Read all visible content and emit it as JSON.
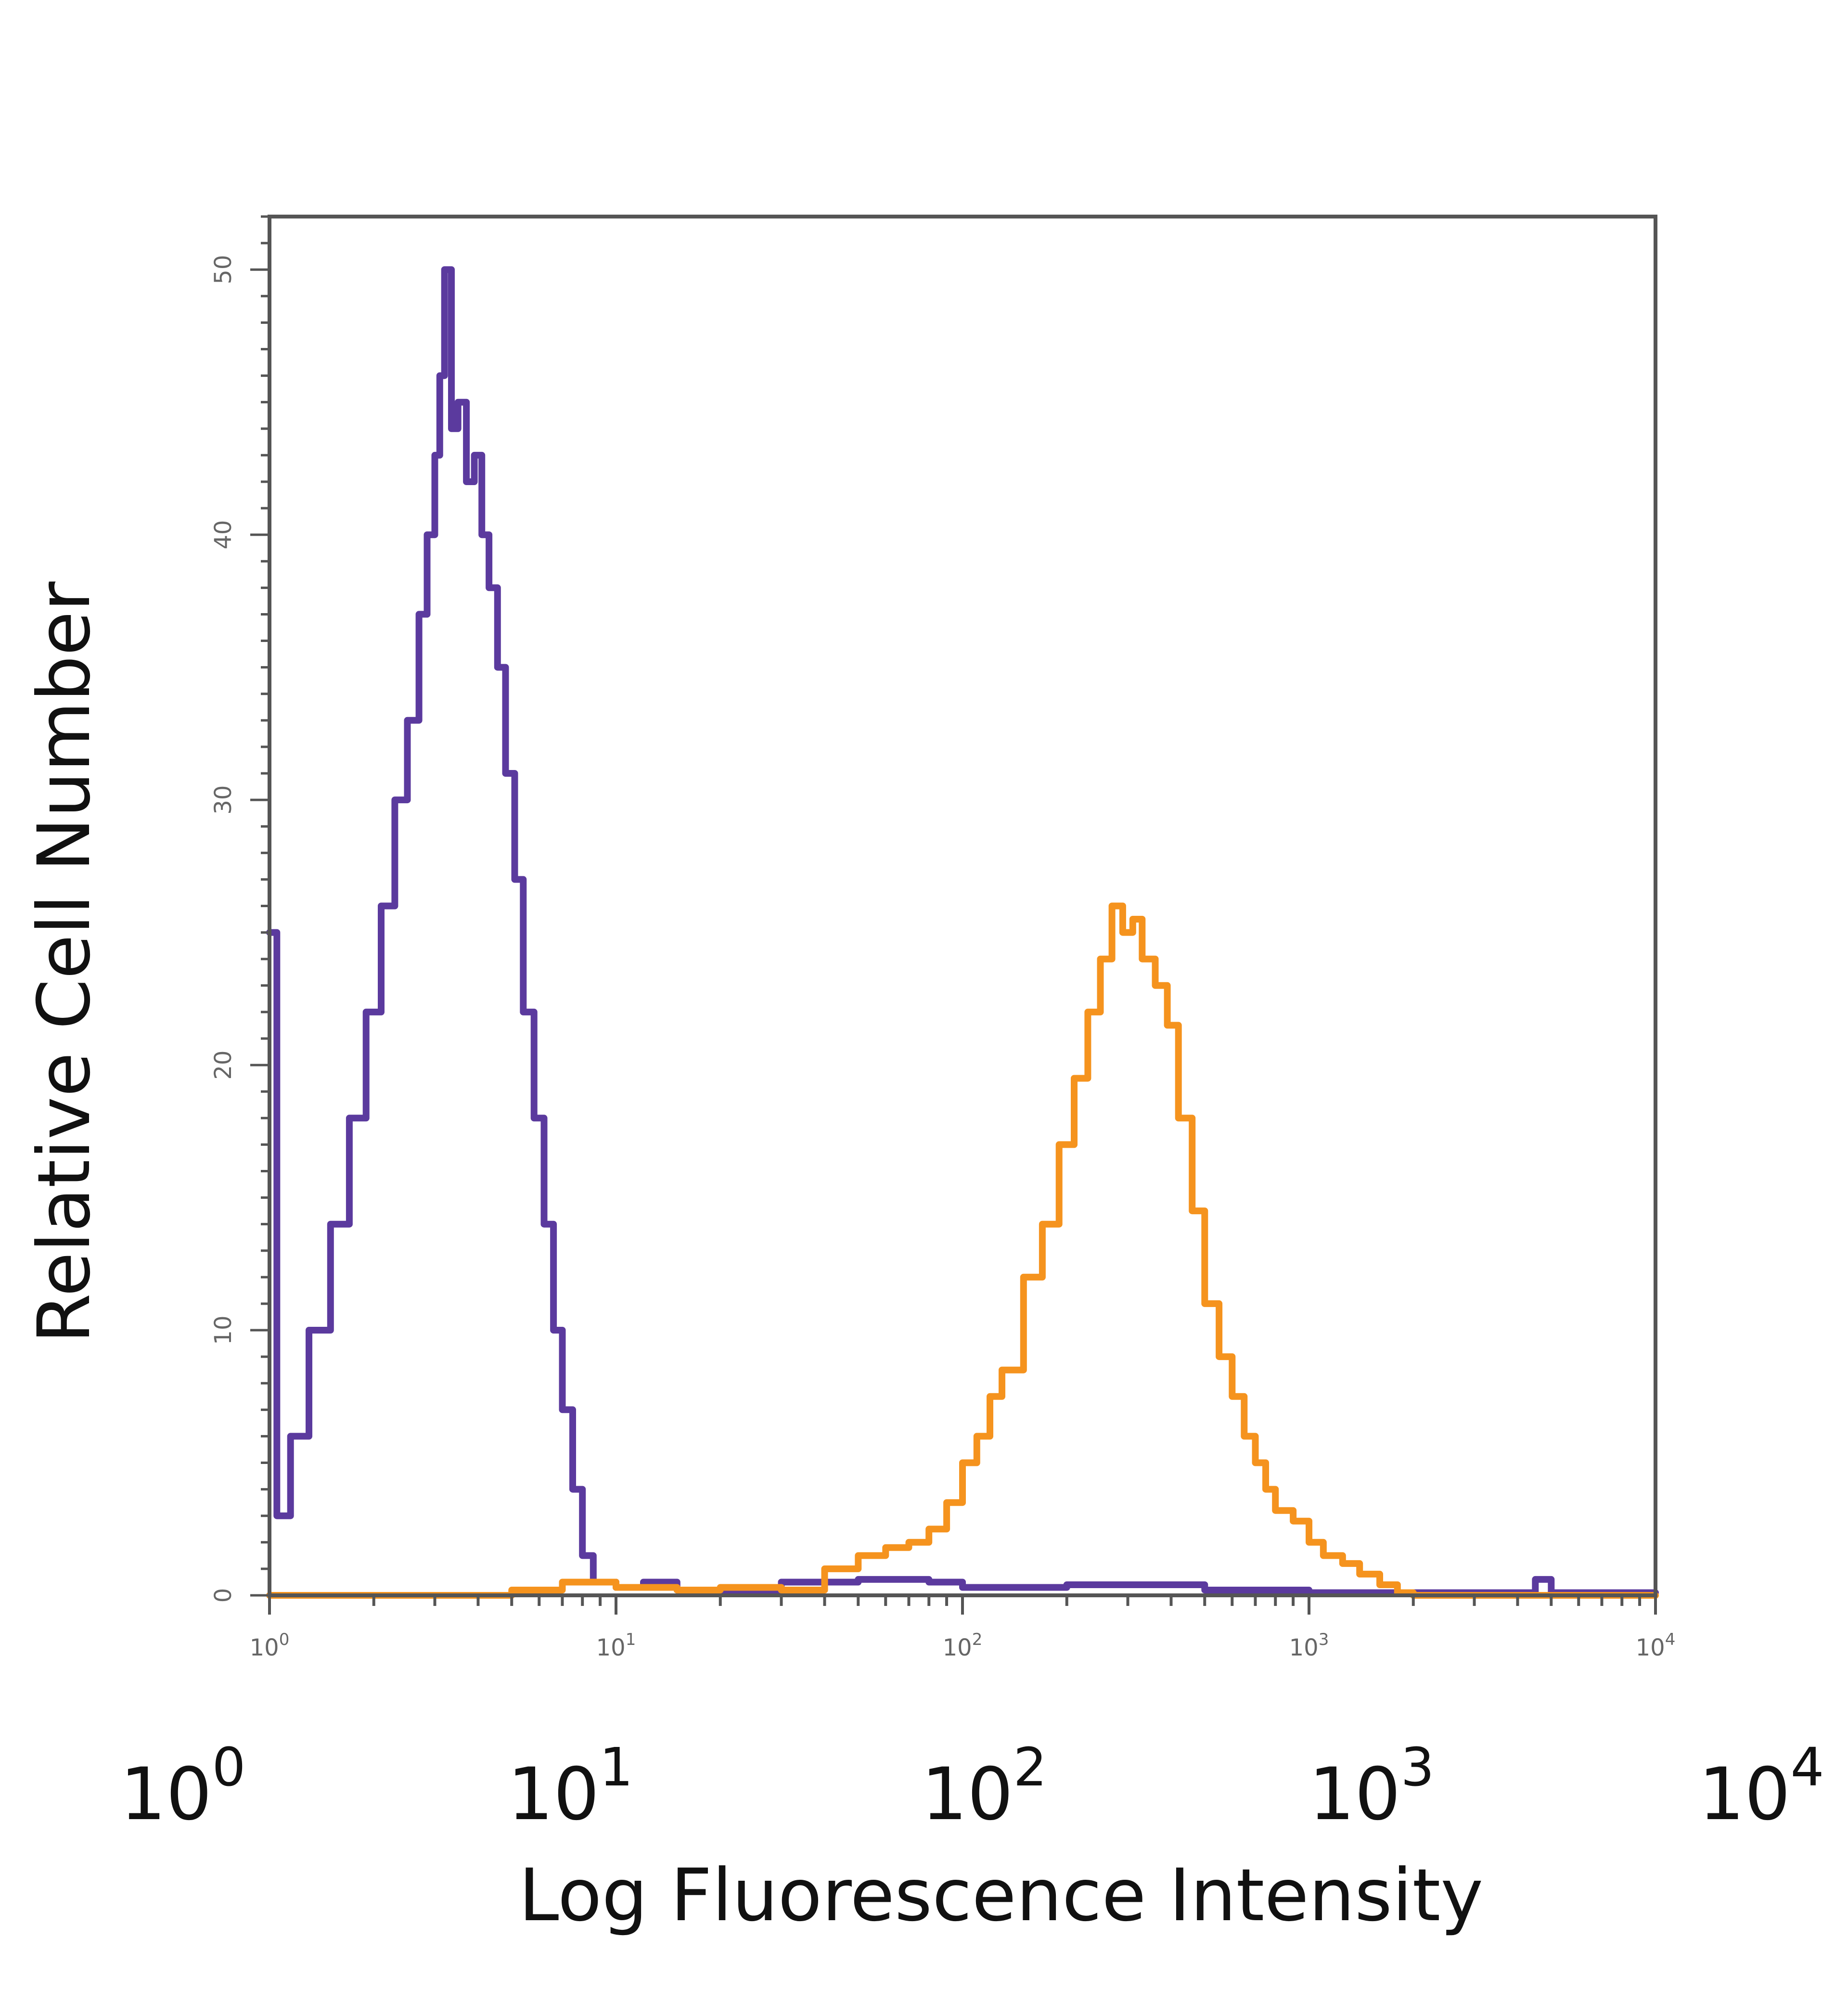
{
  "chart_data": {
    "type": "line",
    "title": "",
    "xlabel": "Log Fluorescence Intensity",
    "ylabel": "Relative Cell Number",
    "x_scale": "log",
    "xlim": [
      1,
      10000
    ],
    "ylim": [
      0,
      52
    ],
    "grid": false,
    "legend": "none",
    "x_tick_labels": [
      {
        "value": 1,
        "base": "10",
        "exp": "0"
      },
      {
        "value": 10,
        "base": "10",
        "exp": "1"
      },
      {
        "value": 100,
        "base": "10",
        "exp": "2"
      },
      {
        "value": 1000,
        "base": "10",
        "exp": "3"
      },
      {
        "value": 10000,
        "base": "10",
        "exp": "4"
      }
    ],
    "y_ticks": [
      0,
      10,
      20,
      30,
      40,
      50
    ],
    "y_tick_labels": [
      "0",
      "10",
      "20",
      "30",
      "40",
      "50"
    ],
    "colors": {
      "series_1": "#5b3a9e",
      "series_2": "#f5931e",
      "frame": "#555555",
      "text": "#111111"
    },
    "series": [
      {
        "color": "#5b3a9e",
        "x": [
          1.0,
          1.05,
          1.15,
          1.3,
          1.5,
          1.7,
          1.9,
          2.1,
          2.3,
          2.5,
          2.7,
          2.85,
          3.0,
          3.1,
          3.2,
          3.35,
          3.5,
          3.7,
          3.9,
          4.1,
          4.3,
          4.55,
          4.8,
          5.1,
          5.4,
          5.8,
          6.2,
          6.6,
          7.0,
          7.5,
          8.0,
          8.6,
          9.2,
          10,
          12,
          15,
          20,
          30,
          50,
          80,
          100,
          200,
          500,
          1000,
          2000,
          4500,
          5000,
          10000
        ],
        "y": [
          25,
          3,
          6,
          10,
          14,
          18,
          22,
          26,
          30,
          33,
          37,
          40,
          43,
          46,
          50,
          44,
          45,
          42,
          43,
          40,
          38,
          35,
          31,
          27,
          22,
          18,
          14,
          10,
          7,
          4,
          1.5,
          0.5,
          0.5,
          0.3,
          0.5,
          0.2,
          0.2,
          0.5,
          0.6,
          0.5,
          0.3,
          0.4,
          0.2,
          0.1,
          0.1,
          0.6,
          0.1,
          0.1
        ]
      },
      {
        "color": "#f5931e",
        "x": [
          1.0,
          2.0,
          3.0,
          5.0,
          7.0,
          10,
          15,
          20,
          30,
          40,
          50,
          60,
          70,
          80,
          90,
          100,
          110,
          120,
          130,
          150,
          170,
          190,
          210,
          230,
          250,
          270,
          290,
          310,
          330,
          360,
          390,
          420,
          460,
          500,
          550,
          600,
          650,
          700,
          750,
          800,
          900,
          1000,
          1100,
          1250,
          1400,
          1600,
          1800,
          2000,
          2500,
          5000,
          10000
        ],
        "y": [
          0,
          0,
          0,
          0.2,
          0.5,
          0.3,
          0.2,
          0.3,
          0.2,
          1.0,
          1.5,
          1.8,
          2.0,
          2.5,
          3.5,
          5.0,
          6.0,
          7.5,
          8.5,
          12.0,
          14.0,
          17.0,
          19.5,
          22.0,
          24.0,
          26.0,
          25.0,
          25.5,
          24.0,
          23.0,
          21.5,
          18.0,
          14.5,
          11.0,
          9.0,
          7.5,
          6.0,
          5.0,
          4.0,
          3.2,
          2.8,
          2.0,
          1.5,
          1.2,
          0.8,
          0.4,
          0.1,
          0,
          0,
          0,
          0
        ]
      }
    ]
  }
}
